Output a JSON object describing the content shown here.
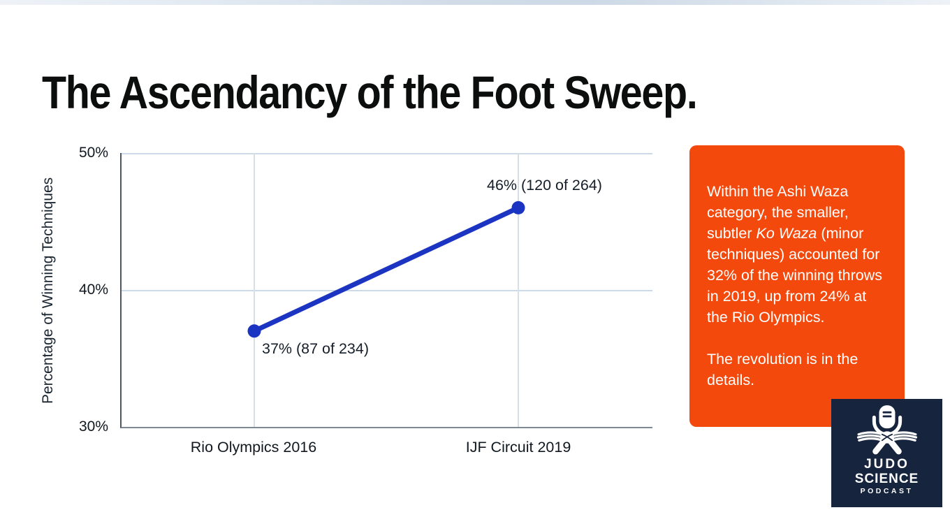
{
  "page": {
    "title": "The Ascendancy of the Foot Sweep."
  },
  "chart_data": {
    "type": "line",
    "categories": [
      "Rio Olympics 2016",
      "IJF Circuit 2019"
    ],
    "values": [
      37,
      46
    ],
    "counts": [
      "87 of 234",
      "120 of 264"
    ],
    "point_labels": [
      "37% (87 of 234)",
      "46% (120 of 264)"
    ],
    "title": "",
    "xlabel": "",
    "ylabel": "Percentage of Winning Techniques",
    "ylim": [
      30,
      50
    ],
    "yticks": [
      "50%",
      "40%",
      "30%"
    ],
    "grid": true,
    "legend": "none",
    "line_color": "#1B34C1"
  },
  "callout": {
    "background": "#F4490C",
    "p1_before": "Within the Ashi Waza category, the smaller, subtler ",
    "p1_italic": "Ko Waza",
    "p1_after": " (minor techniques) accounted for 32% of the winning throws in 2019, up from 24% at the Rio Olympics.",
    "p2": "The revolution is in the details."
  },
  "logo": {
    "background": "#16243E",
    "icon": "microphone-judo-belt-icon",
    "line1": "JUDO",
    "line2": "SCIENCE",
    "line3": "PODCAST"
  },
  "colors": {
    "accent_blue": "#1B34C1",
    "accent_orange": "#F4490C",
    "navy": "#16243E",
    "gridline": "#CCD9E6"
  }
}
